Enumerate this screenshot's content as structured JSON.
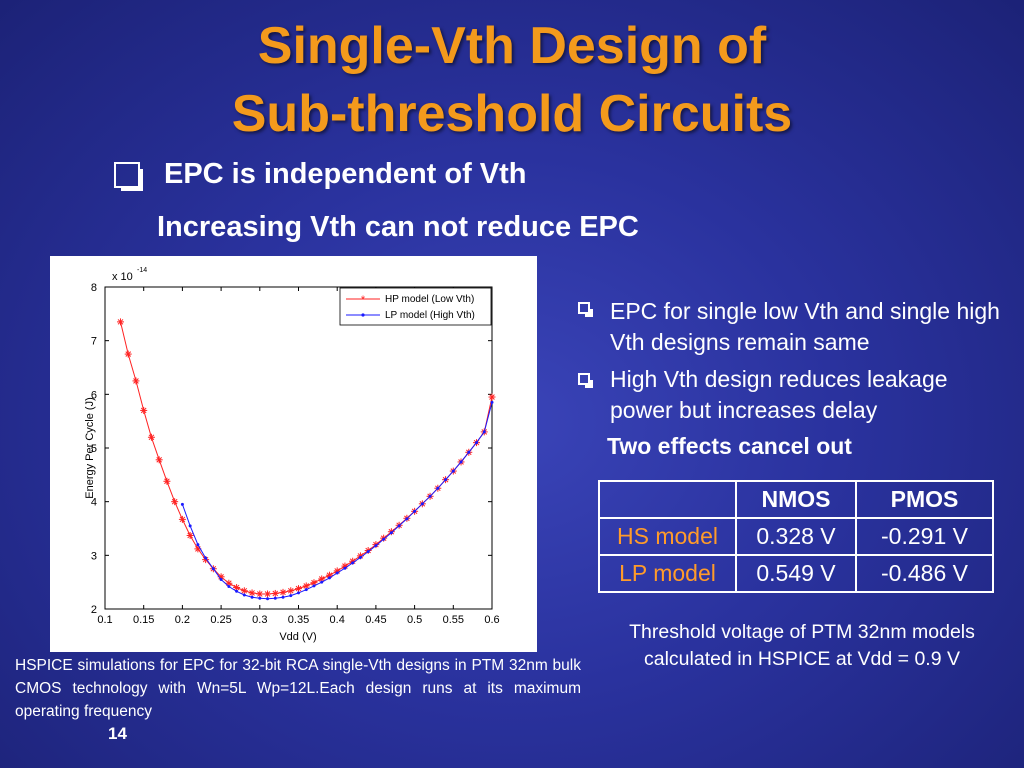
{
  "slide": {
    "title_line1": "Single-Vth Design of",
    "title_line2": "Sub-threshold Circuits",
    "main_bullet": "EPC is independent of Vth",
    "sub_text": "Increasing Vth can not reduce EPC",
    "right_bullets": [
      "EPC for single low Vth and single high Vth designs remain same",
      "High Vth design reduces leakage power but  increases delay"
    ],
    "conclusion": "Two effects cancel out",
    "table": {
      "headers": [
        "",
        "NMOS",
        "PMOS"
      ],
      "rows": [
        {
          "model": "HS model",
          "nmos": "0.328 V",
          "pmos": "-0.291 V"
        },
        {
          "model": "LP model",
          "nmos": "0.549 V",
          "pmos": "-0.486 V"
        }
      ]
    },
    "table_caption_line1": "Threshold voltage of PTM 32nm models",
    "table_caption_line2": "calculated in HSPICE at Vdd = 0.9 V",
    "footer_note": "HSPICE simulations  for EPC for 32-bit RCA  single-Vth designs in PTM 32nm  bulk CMOS technology with  Wn=5L Wp=12L.Each design runs at its maximum operating frequency",
    "page_number": "14"
  },
  "colors": {
    "title": "#f39a1c",
    "row_header": "#ff9b2a",
    "hp_series": "#ff2222",
    "lp_series": "#1a1aff"
  },
  "chart_data": {
    "type": "line",
    "xlabel": "Vdd (V)",
    "ylabel": "Energy Per Cycle (J)",
    "y_multiplier": "x 10",
    "y_exponent": "-14",
    "xlim": [
      0.1,
      0.6
    ],
    "ylim": [
      2,
      8
    ],
    "x_ticks": [
      "0.1",
      "0.15",
      "0.2",
      "0.25",
      "0.3",
      "0.35",
      "0.4",
      "0.45",
      "0.5",
      "0.55",
      "0.6"
    ],
    "y_ticks": [
      "2",
      "3",
      "4",
      "5",
      "6",
      "7",
      "8"
    ],
    "grid": false,
    "legend_position": "top-right",
    "series": [
      {
        "name": "HP model (Low Vth)",
        "color": "#ff2222",
        "marker": "star",
        "x": [
          0.12,
          0.13,
          0.14,
          0.15,
          0.16,
          0.17,
          0.18,
          0.19,
          0.2,
          0.21,
          0.22,
          0.23,
          0.24,
          0.25,
          0.26,
          0.27,
          0.28,
          0.29,
          0.3,
          0.31,
          0.32,
          0.33,
          0.34,
          0.35,
          0.36,
          0.37,
          0.38,
          0.39,
          0.4,
          0.41,
          0.42,
          0.43,
          0.44,
          0.45,
          0.46,
          0.47,
          0.48,
          0.49,
          0.5,
          0.51,
          0.52,
          0.53,
          0.54,
          0.55,
          0.56,
          0.57,
          0.58,
          0.59,
          0.6
        ],
        "y": [
          7.35,
          6.75,
          6.25,
          5.7,
          5.2,
          4.78,
          4.38,
          4.0,
          3.67,
          3.37,
          3.12,
          2.92,
          2.75,
          2.6,
          2.48,
          2.4,
          2.34,
          2.3,
          2.28,
          2.28,
          2.29,
          2.31,
          2.34,
          2.38,
          2.43,
          2.49,
          2.56,
          2.63,
          2.71,
          2.8,
          2.89,
          2.99,
          3.09,
          3.2,
          3.32,
          3.44,
          3.56,
          3.69,
          3.82,
          3.96,
          4.1,
          4.25,
          4.41,
          4.57,
          4.74,
          4.92,
          5.1,
          5.3,
          5.95
        ]
      },
      {
        "name": "LP model (High Vth)",
        "color": "#1a1aff",
        "marker": "dot",
        "x": [
          0.2,
          0.21,
          0.22,
          0.23,
          0.24,
          0.25,
          0.26,
          0.27,
          0.28,
          0.29,
          0.3,
          0.31,
          0.32,
          0.33,
          0.34,
          0.35,
          0.36,
          0.37,
          0.38,
          0.39,
          0.4,
          0.41,
          0.42,
          0.43,
          0.44,
          0.45,
          0.46,
          0.47,
          0.48,
          0.49,
          0.5,
          0.51,
          0.52,
          0.53,
          0.54,
          0.55,
          0.56,
          0.57,
          0.58,
          0.59,
          0.6
        ],
        "y": [
          3.95,
          3.55,
          3.2,
          2.95,
          2.75,
          2.55,
          2.42,
          2.33,
          2.26,
          2.22,
          2.2,
          2.19,
          2.2,
          2.22,
          2.25,
          2.3,
          2.36,
          2.43,
          2.5,
          2.58,
          2.67,
          2.76,
          2.86,
          2.96,
          3.07,
          3.18,
          3.3,
          3.42,
          3.55,
          3.68,
          3.82,
          3.96,
          4.1,
          4.25,
          4.41,
          4.57,
          4.74,
          4.92,
          5.1,
          5.3,
          5.85
        ]
      }
    ]
  }
}
